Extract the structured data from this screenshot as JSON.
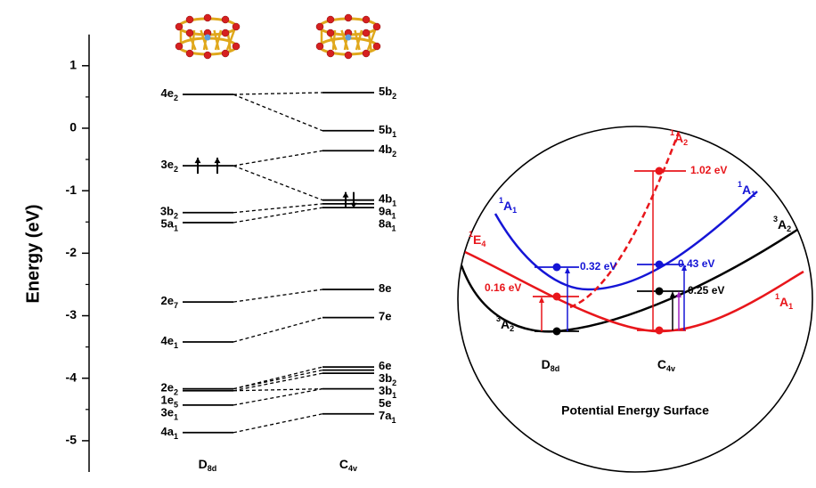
{
  "chart_data": {
    "type": "energy-levels",
    "y_label": "Energy (eV)",
    "ylim": [
      -5.5,
      1.5
    ],
    "yticks": [
      -5,
      -4,
      -3,
      -2,
      -1,
      0,
      1
    ],
    "columns": [
      {
        "name": "D",
        "sub": "8d",
        "levels": [
          {
            "label": "4e",
            "sub": "2",
            "energy": 0.54
          },
          {
            "label": "3e",
            "sub": "2",
            "energy": -0.6
          },
          {
            "label": "3b",
            "sub": "2",
            "energy": -1.35
          },
          {
            "label": "5a",
            "sub": "1",
            "energy": -1.51
          },
          {
            "label": "2e",
            "sub": "7",
            "energy": -2.78
          },
          {
            "label": "4e",
            "sub": "1",
            "energy": -3.42
          },
          {
            "label": "2e",
            "sub": "2",
            "energy": -4.17
          },
          {
            "label": "1e",
            "sub": "5",
            "energy": -4.2
          },
          {
            "label": "3e",
            "sub": "1",
            "energy": -4.43
          },
          {
            "label": "4a",
            "sub": "1",
            "energy": -4.87
          }
        ]
      },
      {
        "name": "C",
        "sub": "4v",
        "levels": [
          {
            "label": "5b",
            "sub": "2",
            "energy": 0.57
          },
          {
            "label": "5b",
            "sub": "1",
            "energy": -0.04
          },
          {
            "label": "4b",
            "sub": "2",
            "energy": -0.36
          },
          {
            "label": "4b",
            "sub": "1",
            "energy": -1.15
          },
          {
            "label": "9a",
            "sub": "1",
            "energy": -1.21
          },
          {
            "label": "8a",
            "sub": "1",
            "energy": -1.27
          },
          {
            "label": "8e",
            "sub": null,
            "energy": -2.58
          },
          {
            "label": "7e",
            "sub": null,
            "energy": -3.03
          },
          {
            "label": "6e",
            "sub": null,
            "energy": -3.82
          },
          {
            "label": "3b",
            "sub": "2",
            "energy": -3.87
          },
          {
            "label": "3b",
            "sub": "1",
            "energy": -3.92
          },
          {
            "label": "5e",
            "sub": null,
            "energy": -4.17
          },
          {
            "label": "7a",
            "sub": "1",
            "energy": -4.57
          }
        ]
      }
    ]
  },
  "pes": {
    "title": "Potential Energy Surface",
    "states": [
      {
        "sup": "1",
        "main": "A",
        "sub": "2",
        "color": "#e8161b"
      },
      {
        "sup": "1",
        "main": "A",
        "sub": "1",
        "color": "#1515d6"
      },
      {
        "sup": "1",
        "main": "A",
        "sub": "1",
        "color": "#1515d6"
      },
      {
        "sup": "3",
        "main": "A",
        "sub": "2",
        "color": "#000000"
      },
      {
        "sup": "1",
        "main": "E",
        "sub": "4",
        "color": "#e8161b"
      },
      {
        "sup": "1",
        "main": "A",
        "sub": "1",
        "color": "#e8161b"
      },
      {
        "sup": "3",
        "main": "A",
        "sub": "2",
        "color": "#000000"
      }
    ],
    "gaps": [
      {
        "label": "1.02 eV",
        "color": "#e8161b"
      },
      {
        "label": "0.32 eV",
        "color": "#1515d6"
      },
      {
        "label": "0.43 eV",
        "color": "#1515d6"
      },
      {
        "label": "0.25 eV",
        "color": "#000000"
      },
      {
        "label": "0.16 eV",
        "color": "#e8161b"
      }
    ],
    "geometries": [
      {
        "main": "D",
        "sub": "8d"
      },
      {
        "main": "C",
        "sub": "4v"
      }
    ]
  }
}
